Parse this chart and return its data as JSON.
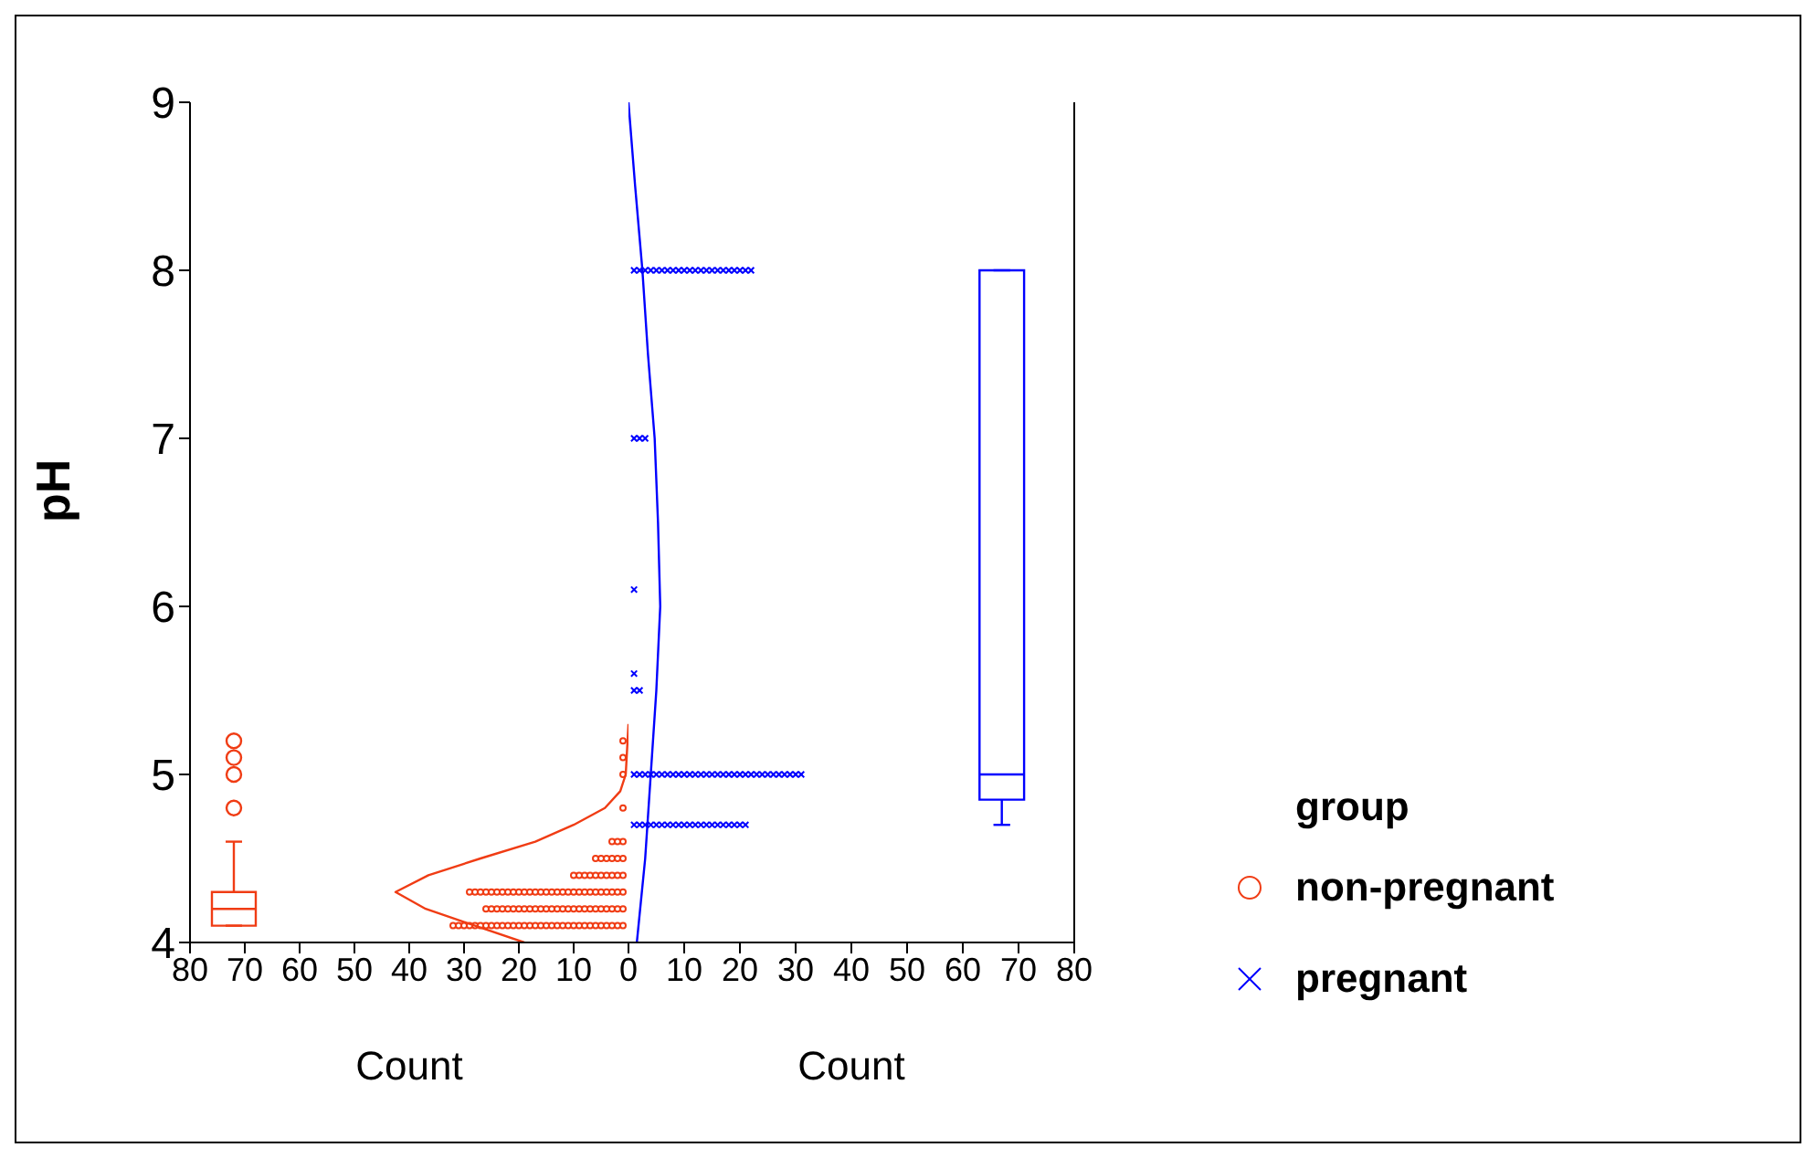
{
  "chart_data": [
    {
      "type": "scatter",
      "xlabel": "Count",
      "ylabel": "pH",
      "xlim": [
        80,
        0
      ],
      "xticks": [
        80,
        70,
        60,
        50,
        40,
        30,
        20,
        10,
        0
      ],
      "ylim": [
        4,
        9
      ],
      "yticks": [
        4,
        5,
        6,
        7,
        8,
        9
      ],
      "legend": "right",
      "legend_title": "group",
      "series": [
        {
          "name": "non-pregnant",
          "marker": "circle",
          "color": "#f03c14",
          "x": [
            1,
            2,
            3,
            4,
            5,
            6,
            7,
            8,
            9,
            10,
            11,
            12,
            13,
            14,
            15,
            16,
            17,
            18,
            19,
            20,
            21,
            22,
            23,
            24,
            25,
            26,
            27,
            28,
            29,
            30,
            31,
            32,
            1,
            2,
            3,
            4,
            5,
            6,
            7,
            8,
            9,
            10,
            11,
            12,
            13,
            14,
            15,
            16,
            17,
            18,
            19,
            20,
            21,
            22,
            23,
            24,
            25,
            26,
            1,
            2,
            3,
            4,
            5,
            6,
            7,
            8,
            9,
            10,
            11,
            12,
            13,
            14,
            15,
            16,
            17,
            18,
            19,
            20,
            21,
            22,
            23,
            24,
            25,
            26,
            27,
            28,
            29,
            1,
            2,
            3,
            4,
            5,
            6,
            7,
            8,
            9,
            10,
            1,
            2,
            3,
            4,
            5,
            6,
            1,
            2,
            3,
            1,
            1,
            1,
            1
          ],
          "values": [
            4.1,
            4.1,
            4.1,
            4.1,
            4.1,
            4.1,
            4.1,
            4.1,
            4.1,
            4.1,
            4.1,
            4.1,
            4.1,
            4.1,
            4.1,
            4.1,
            4.1,
            4.1,
            4.1,
            4.1,
            4.1,
            4.1,
            4.1,
            4.1,
            4.1,
            4.1,
            4.1,
            4.1,
            4.1,
            4.1,
            4.1,
            4.1,
            4.2,
            4.2,
            4.2,
            4.2,
            4.2,
            4.2,
            4.2,
            4.2,
            4.2,
            4.2,
            4.2,
            4.2,
            4.2,
            4.2,
            4.2,
            4.2,
            4.2,
            4.2,
            4.2,
            4.2,
            4.2,
            4.2,
            4.2,
            4.2,
            4.2,
            4.2,
            4.3,
            4.3,
            4.3,
            4.3,
            4.3,
            4.3,
            4.3,
            4.3,
            4.3,
            4.3,
            4.3,
            4.3,
            4.3,
            4.3,
            4.3,
            4.3,
            4.3,
            4.3,
            4.3,
            4.3,
            4.3,
            4.3,
            4.3,
            4.3,
            4.3,
            4.3,
            4.3,
            4.3,
            4.3,
            4.4,
            4.4,
            4.4,
            4.4,
            4.4,
            4.4,
            4.4,
            4.4,
            4.4,
            4.4,
            4.5,
            4.5,
            4.5,
            4.5,
            4.5,
            4.5,
            4.6,
            4.6,
            4.6,
            4.8,
            5.0,
            5.1,
            5.2
          ]
        },
        {
          "type": "line",
          "marker": "none",
          "color": "#f03c14",
          "x": [
            19,
            28,
            37,
            42.5,
            36.5,
            27,
            17,
            10,
            4.3,
            1.5,
            0.5,
            0
          ],
          "values": [
            4.0,
            4.1,
            4.2,
            4.3,
            4.4,
            4.5,
            4.6,
            4.7,
            4.8,
            4.9,
            5.0,
            5.3
          ]
        },
        {
          "type": "box",
          "color": "#f03c14",
          "x": [
            72
          ],
          "boxes": [
            {
              "low": 4.1,
              "q1": 4.1,
              "median": 4.2,
              "q3": 4.3,
              "high": 4.6,
              "outliers": [
                4.8,
                5.0,
                5.1,
                5.2
              ]
            }
          ]
        }
      ]
    },
    {
      "type": "scatter",
      "xlabel": "Count",
      "xlim": [
        0,
        80
      ],
      "xticks": [
        {
          "value": 0,
          "label": null
        },
        10,
        20,
        30,
        40,
        50,
        60,
        70,
        80
      ],
      "ylim": [
        4,
        9
      ],
      "yticks": [
        4,
        5,
        6,
        7,
        8,
        9
      ],
      "tick_labels": "x",
      "legend": "right",
      "series": [
        {
          "name": "pregnant",
          "marker": "cross",
          "color": "#0000ff",
          "x": [
            1,
            2,
            3,
            4,
            5,
            6,
            7,
            8,
            9,
            10,
            11,
            12,
            13,
            14,
            15,
            16,
            17,
            18,
            19,
            20,
            21,
            1,
            2,
            3,
            4,
            5,
            6,
            7,
            8,
            9,
            10,
            11,
            12,
            13,
            14,
            15,
            16,
            17,
            18,
            19,
            20,
            21,
            22,
            23,
            24,
            25,
            26,
            27,
            28,
            29,
            30,
            31,
            1,
            2,
            1,
            1,
            1,
            2,
            3,
            1,
            2,
            3,
            4,
            5,
            6,
            7,
            8,
            9,
            10,
            11,
            12,
            13,
            14,
            15,
            16,
            17,
            18,
            19,
            20,
            21,
            22
          ],
          "values": [
            4.7,
            4.7,
            4.7,
            4.7,
            4.7,
            4.7,
            4.7,
            4.7,
            4.7,
            4.7,
            4.7,
            4.7,
            4.7,
            4.7,
            4.7,
            4.7,
            4.7,
            4.7,
            4.7,
            4.7,
            4.7,
            5.0,
            5.0,
            5.0,
            5.0,
            5.0,
            5.0,
            5.0,
            5.0,
            5.0,
            5.0,
            5.0,
            5.0,
            5.0,
            5.0,
            5.0,
            5.0,
            5.0,
            5.0,
            5.0,
            5.0,
            5.0,
            5.0,
            5.0,
            5.0,
            5.0,
            5.0,
            5.0,
            5.0,
            5.0,
            5.0,
            5.0,
            5.5,
            5.5,
            5.6,
            6.1,
            7.0,
            7.0,
            7.0,
            8.0,
            8.0,
            8.0,
            8.0,
            8.0,
            8.0,
            8.0,
            8.0,
            8.0,
            8.0,
            8.0,
            8.0,
            8.0,
            8.0,
            8.0,
            8.0,
            8.0,
            8.0,
            8.0,
            8.0,
            8.0,
            8.0
          ]
        },
        {
          "type": "line",
          "marker": "none",
          "color": "#0000ff",
          "x": [
            1.5,
            3,
            4,
            5,
            5.7,
            5.3,
            4.7,
            3.5,
            2.5,
            1.2,
            0
          ],
          "values": [
            4.0,
            4.5,
            5.0,
            5.5,
            6.0,
            6.5,
            7.0,
            7.5,
            8.0,
            8.5,
            9.0
          ]
        },
        {
          "type": "box",
          "color": "#0000ff",
          "x": [
            67
          ],
          "boxes": [
            {
              "low": 4.7,
              "q1": 4.85,
              "median": 5.0,
              "q3": 8.0,
              "high": 8.0
            }
          ]
        }
      ]
    }
  ]
}
